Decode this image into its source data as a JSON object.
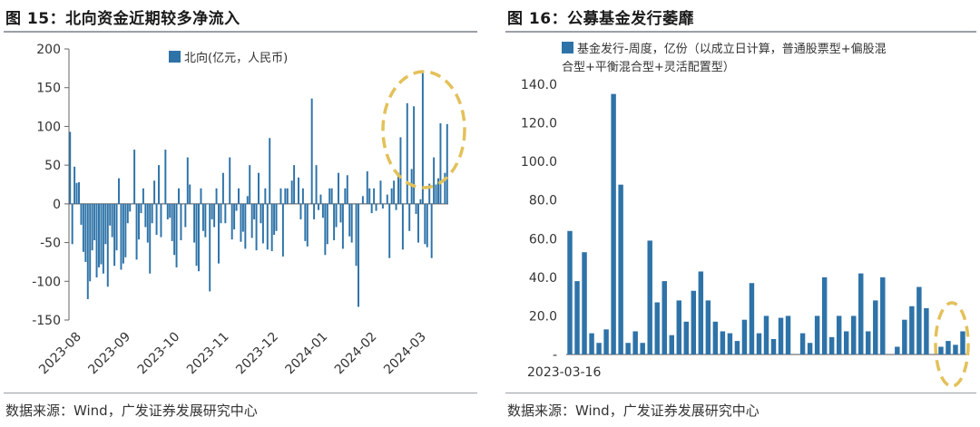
{
  "left": {
    "title": "图 15：北向资金近期较多净流入",
    "source": "数据来源：Wind，广发证券发展研究中心",
    "chart_data": {
      "type": "bar",
      "legend": [
        "北向(亿元，人民币)"
      ],
      "ylim": [
        -150,
        200
      ],
      "yticks": [
        200,
        150,
        100,
        50,
        0,
        -50,
        -100,
        -150
      ],
      "xticks": [
        "2023-08",
        "2023-09",
        "2023-10",
        "2023-11",
        "2023-12",
        "2024-01",
        "2024-02",
        "2024-03"
      ],
      "grid": false,
      "color": "#2e73a8",
      "highlight_color": "#e3c15a",
      "series": [
        {
          "values": [
            93,
            -52,
            48,
            27,
            28,
            -27,
            -62,
            -75,
            -123,
            -100,
            -60,
            -47,
            -95,
            -82,
            -78,
            -90,
            -52,
            -107,
            -28,
            -43,
            -80,
            -60,
            33,
            -85,
            -77,
            -69,
            -25,
            -10,
            0,
            70,
            -72,
            -46,
            -12,
            20,
            -30,
            -50,
            -90,
            -25,
            30,
            -40,
            50,
            -43,
            0,
            70,
            -20,
            -18,
            -48,
            -66,
            -82,
            20,
            -47,
            0,
            -30,
            60,
            25,
            0,
            -50,
            -80,
            -87,
            20,
            -35,
            -43,
            0,
            -113,
            -20,
            -30,
            20,
            -77,
            -25,
            40,
            -25,
            0,
            60,
            -46,
            -33,
            -9,
            20,
            -49,
            -36,
            -58,
            10,
            50,
            -44,
            -20,
            -60,
            40,
            -25,
            -51,
            20,
            -59,
            85,
            -61,
            -40,
            -35,
            0,
            20,
            -68,
            20,
            20,
            0,
            30,
            50,
            0,
            34,
            -20,
            20,
            -48,
            -55,
            0,
            136,
            -20,
            50,
            -8,
            12,
            -18,
            -66,
            -52,
            20,
            20,
            -47,
            -30,
            40,
            -24,
            -58,
            20,
            37,
            -42,
            -50,
            0,
            -80,
            -133,
            0,
            10,
            0,
            42,
            20,
            -12,
            20,
            -9,
            0,
            30,
            -6,
            0,
            12,
            -70,
            20,
            30,
            -8,
            40,
            86,
            -59,
            0,
            130,
            -35,
            45,
            126,
            -13,
            -50,
            6,
            170,
            -52,
            -56,
            26,
            -70,
            60,
            25,
            33,
            104,
            0,
            40,
            103
          ]
        }
      ]
    }
  },
  "right": {
    "title": "图 16：公募基金发行萎靡",
    "source": "数据来源：Wind，广发证券发展研究中心",
    "chart_data": {
      "type": "bar",
      "legend": [
        "基金发行-周度，亿份（以成立日计算，普通股票型+偏股混合型+平衡混合型+灵活配置型）"
      ],
      "ylim": [
        0,
        140
      ],
      "yticks": [
        "140.0",
        "120.0",
        "100.0",
        "80.0",
        "60.0",
        "40.0",
        "20.0",
        "-"
      ],
      "xticks": [
        "2023-03-16"
      ],
      "grid": false,
      "color": "#2e73a8",
      "highlight_color": "#e3c15a",
      "series": [
        {
          "values": [
            64,
            38,
            53,
            11,
            6,
            13,
            135,
            88,
            6,
            12,
            6,
            59,
            27,
            38,
            10,
            28,
            17,
            33,
            43,
            28,
            17,
            12,
            11,
            7,
            18,
            37,
            11,
            20,
            8,
            19,
            20,
            0,
            11,
            6,
            20,
            40,
            9,
            20,
            12,
            20,
            42,
            12,
            28,
            40,
            0,
            4,
            18,
            25,
            35,
            24,
            0,
            4,
            7,
            5,
            12
          ]
        }
      ]
    }
  }
}
